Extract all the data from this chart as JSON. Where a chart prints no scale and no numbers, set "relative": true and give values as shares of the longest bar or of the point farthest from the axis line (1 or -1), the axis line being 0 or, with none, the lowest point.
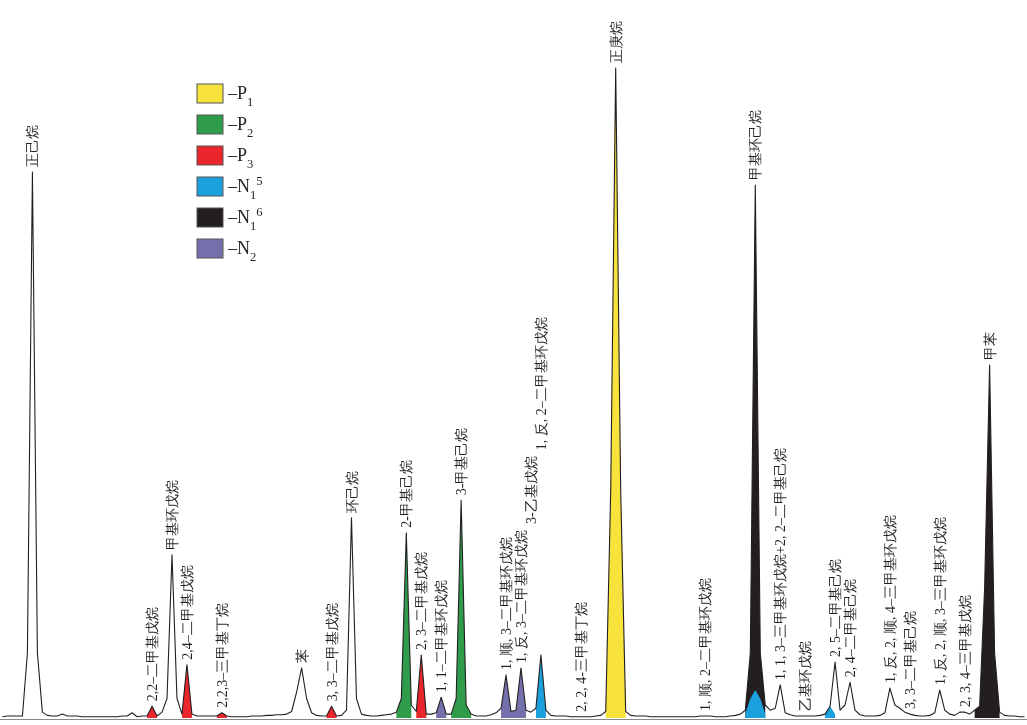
{
  "chart_data": {
    "type": "line",
    "relative": true,
    "legend": "top left",
    "categories": [
      null,
      null,
      null,
      null,
      null,
      null,
      "正己烷",
      null,
      null,
      null,
      null,
      null,
      null,
      null,
      null,
      null,
      null,
      null,
      null,
      null,
      null,
      null,
      null,
      null,
      null,
      null,
      null,
      null,
      null,
      null,
      "2,2–二甲基戊烷",
      null,
      null,
      null,
      "甲基环戊烷",
      null,
      null,
      "2,4–二甲基戊烷",
      null,
      null,
      null,
      null,
      null,
      null,
      "2,2,3–三甲基丁烷",
      null,
      null,
      null,
      null,
      null,
      null,
      null,
      null,
      null,
      null,
      null,
      null,
      null,
      null,
      null,
      "苯",
      null,
      null,
      null,
      null,
      null,
      "3, 3–二甲基戊烷",
      null,
      null,
      null,
      "环己烷",
      null,
      null,
      null,
      null,
      null,
      null,
      null,
      null,
      null,
      null,
      "2-甲基己烷",
      null,
      null,
      "2, 3–二甲基戊烷",
      null,
      null,
      null,
      "1, 1–二甲基环戊烷",
      null,
      null,
      null,
      "3-甲基己烷",
      null,
      null,
      null,
      null,
      null,
      null,
      null,
      null,
      "1, 顺, 3–二甲基环戊烷",
      null,
      null,
      "1, 反, 3–二甲基环戊烷",
      null,
      "3-乙基戊烷",
      null,
      "1, 反, 2–二甲基环戊烷",
      null,
      null,
      null,
      null,
      null,
      null,
      null,
      "2, 2, 4-三甲基丁烷",
      null,
      null,
      null,
      null,
      null,
      null,
      "正庚烷",
      null,
      null,
      null,
      null,
      null,
      null,
      null,
      null,
      null,
      null,
      null,
      null,
      null,
      null,
      null,
      null,
      null,
      "1, 顺, 2–二甲基环戊烷",
      null,
      null,
      null,
      null,
      null,
      null,
      null,
      null,
      null,
      "甲基环己烷",
      null,
      null,
      null,
      null,
      "1, 1, 3–三甲基环戊烷+2, 2–二甲基己烷",
      null,
      null,
      null,
      null,
      "乙基环戊烷",
      null,
      null,
      null,
      null,
      null,
      "2, 5–二甲基己烷",
      null,
      null,
      "2, 4–二甲基己烷",
      null,
      null,
      null,
      null,
      null,
      null,
      null,
      "1, 反, 2, 顺, 4–三甲基环戊烷",
      null,
      null,
      null,
      "3, 3–二甲基己烷",
      null,
      null,
      null,
      null,
      null,
      "1, 反, 2, 顺, 3–三甲基环戊烷",
      null,
      null,
      null,
      null,
      "2, 3, 4–三甲基戊烷",
      null,
      null,
      null,
      null,
      "甲苯",
      null,
      null,
      null,
      null,
      null,
      null,
      null
    ],
    "series": [
      {
        "color": "#231f20",
        "values": [
          0.002,
          0.003,
          0.003,
          0.003,
          0.003,
          0.1,
          0.84,
          0.1,
          0.009,
          0.004,
          0.003,
          0.003,
          0.006,
          0.003,
          0.003,
          0.003,
          0.002,
          0.002,
          0.002,
          0.002,
          0.002,
          0.002,
          0.002,
          0.002,
          0.003,
          0.003,
          0.008,
          0.002,
          0.003,
          0.003,
          0.018,
          0.003,
          0.009,
          0.03,
          0.251,
          0.03,
          0.006,
          0.082,
          0.006,
          0.003,
          0.003,
          0.003,
          0.003,
          0.003,
          0.008,
          0.003,
          0.002,
          0.002,
          0.002,
          0.002,
          0.003,
          0.003,
          0.003,
          0.004,
          0.004,
          0.005,
          0.005,
          0.006,
          0.01,
          0.04,
          0.077,
          0.03,
          0.008,
          0.004,
          0.003,
          0.003,
          0.018,
          0.003,
          0.004,
          0.012,
          0.308,
          0.03,
          0.006,
          0.004,
          0.003,
          0.003,
          0.004,
          0.005,
          0.006,
          0.009,
          0.03,
          0.285,
          0.02,
          0.01,
          0.097,
          0.006,
          0.006,
          0.008,
          0.032,
          0.006,
          0.006,
          0.03,
          0.335,
          0.02,
          0.006,
          0.003,
          0.003,
          0.003,
          0.005,
          0.008,
          0.015,
          0.066,
          0.01,
          0.012,
          0.077,
          0.012,
          0.009,
          0.015,
          0.097,
          0.012,
          0.004,
          0.003,
          0.003,
          0.003,
          0.002,
          0.002,
          0.002,
          0.002,
          0.002,
          0.003,
          0.004,
          0.01,
          0.35,
          1.0,
          0.35,
          0.01,
          0.004,
          0.003,
          0.003,
          0.003,
          0.002,
          0.002,
          0.002,
          0.002,
          0.002,
          0.002,
          0.002,
          0.002,
          0.002,
          0.002,
          0.003,
          0.003,
          0.003,
          0.002,
          0.002,
          0.002,
          0.003,
          0.004,
          0.006,
          0.012,
          0.1,
          0.82,
          0.1,
          0.02,
          0.012,
          0.015,
          0.051,
          0.008,
          0.005,
          0.003,
          0.003,
          0.003,
          0.003,
          0.003,
          0.004,
          0.006,
          0.018,
          0.086,
          0.012,
          0.02,
          0.055,
          0.012,
          0.005,
          0.003,
          0.003,
          0.003,
          0.004,
          0.008,
          0.046,
          0.02,
          0.015,
          0.009,
          0.006,
          0.004,
          0.003,
          0.003,
          0.004,
          0.008,
          0.043,
          0.012,
          0.006,
          0.004,
          0.009,
          0.009,
          0.006,
          0.012,
          0.018,
          0.2,
          0.543,
          0.1,
          0.009,
          0.004,
          0.003,
          0.003,
          0.002,
          0.002
        ]
      },
      {
        "type": "area",
        "name": "–P$_{1}$",
        "color": "#f7e33c",
        "values": [
          null,
          null,
          null,
          null,
          null,
          null,
          null,
          null,
          null,
          null,
          null,
          null,
          null,
          null,
          null,
          null,
          null,
          null,
          null,
          null,
          null,
          null,
          null,
          null,
          null,
          null,
          null,
          null,
          null,
          null,
          null,
          null,
          null,
          null,
          null,
          null,
          null,
          null,
          null,
          null,
          null,
          null,
          null,
          null,
          null,
          null,
          null,
          null,
          null,
          null,
          null,
          null,
          null,
          null,
          null,
          null,
          null,
          null,
          null,
          null,
          null,
          null,
          null,
          null,
          null,
          null,
          null,
          null,
          null,
          null,
          null,
          null,
          null,
          null,
          null,
          null,
          null,
          null,
          null,
          null,
          null,
          null,
          null,
          null,
          null,
          null,
          null,
          null,
          null,
          null,
          null,
          null,
          null,
          null,
          null,
          null,
          null,
          null,
          null,
          null,
          null,
          null,
          null,
          null,
          null,
          null,
          null,
          null,
          null,
          null,
          null,
          null,
          null,
          null,
          null,
          null,
          null,
          null,
          null,
          null,
          null,
          0.01,
          0.35,
          1.0,
          0.35,
          0.01,
          null,
          null,
          null,
          null,
          null,
          null,
          null,
          null,
          null,
          null,
          null,
          null,
          null,
          null,
          null,
          null,
          null,
          null,
          null,
          null,
          null,
          null,
          null,
          null,
          null,
          null,
          null,
          null,
          null,
          null,
          null,
          null,
          null,
          null,
          null,
          null,
          null,
          null,
          null,
          null,
          null,
          null,
          null,
          null,
          null,
          null,
          null,
          null,
          null,
          null,
          null,
          null,
          null,
          null,
          null,
          null,
          null,
          null,
          null,
          null,
          null,
          null,
          null,
          null,
          null,
          null,
          null,
          null,
          null,
          null,
          null,
          null,
          null,
          null,
          null,
          null,
          null,
          null,
          null,
          null
        ]
      },
      {
        "type": "area",
        "name": "–P$_{2}$",
        "color": "#2e9c4a",
        "values": [
          null,
          null,
          null,
          null,
          null,
          null,
          null,
          null,
          null,
          null,
          null,
          null,
          null,
          null,
          null,
          null,
          null,
          null,
          null,
          null,
          null,
          null,
          null,
          null,
          null,
          null,
          null,
          null,
          null,
          null,
          null,
          null,
          null,
          null,
          null,
          null,
          null,
          null,
          null,
          null,
          null,
          null,
          null,
          null,
          null,
          null,
          null,
          null,
          null,
          null,
          null,
          null,
          null,
          null,
          null,
          null,
          null,
          null,
          null,
          null,
          null,
          null,
          null,
          null,
          null,
          null,
          null,
          null,
          null,
          null,
          null,
          null,
          null,
          null,
          null,
          null,
          null,
          null,
          null,
          0.009,
          0.03,
          0.285,
          0.02,
          null,
          null,
          null,
          null,
          null,
          null,
          null,
          0.006,
          0.03,
          0.335,
          0.02,
          0.006,
          null,
          null,
          null,
          null,
          null,
          null,
          null,
          null,
          null,
          null,
          null,
          null,
          null,
          null,
          null,
          null,
          null,
          null,
          null,
          null,
          null,
          null,
          null,
          null,
          null,
          null,
          null,
          null,
          null,
          null,
          null,
          null,
          null,
          null,
          null,
          null,
          null,
          null,
          null,
          null,
          null,
          null,
          null,
          null,
          null,
          null,
          null,
          null,
          null,
          null,
          null,
          null,
          null,
          null,
          null,
          null,
          null,
          null,
          null,
          null,
          null,
          null,
          null,
          null,
          null,
          null,
          null,
          null,
          null,
          null,
          null,
          null,
          null,
          null,
          null,
          null,
          null,
          null,
          null,
          null,
          null,
          null,
          null,
          null,
          null,
          null,
          null,
          null,
          null,
          null,
          null,
          null,
          null,
          null,
          null,
          null,
          null,
          null,
          null,
          null,
          null,
          null,
          null,
          null,
          null,
          null,
          null,
          null,
          null,
          null,
          null
        ]
      },
      {
        "type": "area",
        "name": "–P$_{3}$",
        "color": "#e8262c",
        "values": [
          null,
          null,
          null,
          null,
          null,
          null,
          null,
          null,
          null,
          null,
          null,
          null,
          null,
          null,
          null,
          null,
          null,
          null,
          null,
          null,
          null,
          null,
          null,
          null,
          null,
          null,
          null,
          null,
          null,
          0.003,
          0.018,
          0.003,
          null,
          null,
          null,
          null,
          0.006,
          0.082,
          0.006,
          null,
          null,
          null,
          null,
          0.003,
          0.008,
          0.003,
          null,
          null,
          null,
          null,
          null,
          null,
          null,
          null,
          null,
          null,
          null,
          null,
          null,
          null,
          null,
          null,
          null,
          null,
          null,
          0.003,
          0.018,
          0.003,
          null,
          null,
          null,
          null,
          null,
          null,
          null,
          null,
          null,
          null,
          null,
          null,
          null,
          null,
          null,
          0.01,
          0.097,
          0.006,
          null,
          null,
          null,
          null,
          null,
          null,
          null,
          null,
          null,
          null,
          null,
          null,
          null,
          null,
          null,
          null,
          null,
          null,
          null,
          null,
          null,
          null,
          null,
          null,
          null,
          null,
          null,
          null,
          null,
          null,
          null,
          null,
          null,
          null,
          null,
          null,
          null,
          null,
          null,
          null,
          null,
          null,
          null,
          null,
          null,
          null,
          null,
          null,
          null,
          null,
          null,
          null,
          null,
          null,
          null,
          null,
          null,
          null,
          null,
          null,
          null,
          null,
          null,
          null,
          null,
          null,
          null,
          null,
          null,
          null,
          null,
          null,
          null,
          null,
          null,
          null,
          null,
          null,
          null,
          null,
          null,
          null,
          null,
          null,
          null,
          null,
          null,
          null,
          null,
          null,
          null,
          null,
          null,
          null,
          null,
          null,
          null,
          null,
          null,
          null,
          null,
          null,
          null,
          null,
          null,
          null,
          null,
          null,
          null,
          null,
          null,
          null,
          null,
          null,
          null,
          null,
          null,
          null,
          null,
          null
        ]
      },
      {
        "type": "area",
        "name": "–N$_{1}$$^{5}$",
        "color": "#1aa0dc",
        "values": [
          null,
          null,
          null,
          null,
          null,
          null,
          null,
          null,
          null,
          null,
          null,
          null,
          null,
          null,
          null,
          null,
          null,
          null,
          null,
          null,
          null,
          null,
          null,
          null,
          null,
          null,
          null,
          null,
          null,
          null,
          null,
          null,
          null,
          null,
          null,
          null,
          null,
          null,
          null,
          null,
          null,
          null,
          null,
          null,
          null,
          null,
          null,
          null,
          null,
          null,
          null,
          null,
          null,
          null,
          null,
          null,
          null,
          null,
          null,
          null,
          null,
          null,
          null,
          null,
          null,
          null,
          null,
          null,
          null,
          null,
          null,
          null,
          null,
          null,
          null,
          null,
          null,
          null,
          null,
          null,
          null,
          null,
          null,
          null,
          null,
          null,
          null,
          null,
          null,
          null,
          null,
          null,
          null,
          null,
          null,
          null,
          null,
          null,
          null,
          null,
          null,
          null,
          null,
          null,
          null,
          null,
          null,
          0.015,
          0.097,
          0.012,
          null,
          null,
          null,
          null,
          null,
          null,
          null,
          null,
          null,
          null,
          null,
          null,
          null,
          null,
          null,
          null,
          null,
          null,
          null,
          null,
          null,
          null,
          null,
          null,
          null,
          null,
          null,
          null,
          null,
          null,
          null,
          null,
          null,
          null,
          null,
          null,
          null,
          null,
          null,
          0.006,
          0.03,
          0.043,
          0.03,
          0.006,
          null,
          null,
          null,
          null,
          null,
          null,
          null,
          null,
          null,
          null,
          null,
          0.006,
          0.018,
          0.006,
          null,
          null,
          null,
          null,
          null,
          null,
          null,
          null,
          null,
          null,
          null,
          null,
          null,
          null,
          null,
          null,
          null,
          null,
          null,
          null,
          null,
          null,
          null,
          null,
          null,
          null,
          null,
          null,
          null,
          null,
          null,
          null,
          null,
          null,
          null,
          null,
          null,
          null
        ]
      },
      {
        "type": "area",
        "name": "–N$_{1}$$^{6}$",
        "color": "#231f20",
        "values": [
          null,
          null,
          null,
          null,
          null,
          null,
          null,
          null,
          null,
          null,
          null,
          null,
          null,
          null,
          null,
          null,
          null,
          null,
          null,
          null,
          null,
          null,
          null,
          null,
          null,
          null,
          null,
          null,
          null,
          null,
          null,
          null,
          null,
          null,
          null,
          null,
          null,
          null,
          null,
          null,
          null,
          null,
          null,
          null,
          null,
          null,
          null,
          null,
          null,
          null,
          null,
          null,
          null,
          null,
          null,
          null,
          null,
          null,
          null,
          null,
          null,
          null,
          null,
          null,
          null,
          null,
          null,
          null,
          null,
          null,
          null,
          null,
          null,
          null,
          null,
          null,
          null,
          null,
          null,
          null,
          null,
          null,
          null,
          null,
          null,
          null,
          null,
          null,
          null,
          null,
          null,
          null,
          null,
          null,
          null,
          null,
          null,
          null,
          null,
          null,
          null,
          null,
          null,
          null,
          null,
          null,
          null,
          null,
          null,
          null,
          null,
          null,
          null,
          null,
          null,
          null,
          null,
          null,
          null,
          null,
          null,
          null,
          null,
          null,
          null,
          null,
          null,
          null,
          null,
          null,
          null,
          null,
          null,
          null,
          null,
          null,
          null,
          null,
          null,
          null,
          null,
          null,
          null,
          null,
          null,
          null,
          null,
          null,
          null,
          0.012,
          0.1,
          0.82,
          0.1,
          0.02,
          null,
          null,
          null,
          null,
          null,
          null,
          null,
          null,
          null,
          null,
          null,
          null,
          null,
          null,
          null,
          null,
          null,
          null,
          null,
          null,
          null,
          null,
          null,
          null,
          null,
          null,
          null,
          null,
          null,
          null,
          null,
          null,
          null,
          null,
          null,
          null,
          null,
          null,
          null,
          null,
          null,
          0.012,
          0.018,
          0.2,
          0.543,
          0.1,
          0.009,
          null,
          null,
          null,
          null,
          null
        ]
      },
      {
        "type": "area",
        "name": "–N$_{2}$",
        "color": "#7470ac",
        "values": [
          null,
          null,
          null,
          null,
          null,
          null,
          null,
          null,
          null,
          null,
          null,
          null,
          null,
          null,
          null,
          null,
          null,
          null,
          null,
          null,
          null,
          null,
          null,
          null,
          null,
          null,
          null,
          null,
          null,
          null,
          null,
          null,
          null,
          null,
          null,
          null,
          null,
          null,
          null,
          null,
          null,
          null,
          null,
          null,
          null,
          null,
          null,
          null,
          null,
          null,
          null,
          null,
          null,
          null,
          null,
          null,
          null,
          null,
          null,
          null,
          null,
          null,
          null,
          null,
          null,
          null,
          null,
          null,
          null,
          null,
          null,
          null,
          null,
          null,
          null,
          null,
          null,
          null,
          null,
          null,
          null,
          null,
          null,
          null,
          null,
          null,
          null,
          0.008,
          0.032,
          0.006,
          null,
          null,
          null,
          null,
          null,
          null,
          null,
          null,
          null,
          null,
          0.015,
          0.066,
          0.01,
          0.012,
          0.077,
          0.012,
          null,
          null,
          null,
          null,
          null,
          null,
          null,
          null,
          null,
          null,
          null,
          null,
          null,
          null,
          null,
          null,
          null,
          null,
          null,
          null,
          null,
          null,
          null,
          null,
          null,
          null,
          null,
          null,
          null,
          null,
          null,
          null,
          null,
          null,
          null,
          null,
          null,
          null,
          null,
          null,
          null,
          null,
          null,
          null,
          null,
          null,
          null,
          null,
          null,
          null,
          null,
          null,
          null,
          null,
          null,
          null,
          null,
          null,
          null,
          null,
          null,
          null,
          null,
          null,
          null,
          null,
          null,
          null,
          null,
          null,
          null,
          null,
          null,
          null,
          null,
          null,
          null,
          null,
          null,
          null,
          null,
          null,
          null,
          null,
          null,
          null,
          null,
          null,
          null,
          null,
          null,
          null,
          null,
          null,
          null,
          null,
          null,
          null,
          null,
          null
        ]
      }
    ]
  }
}
